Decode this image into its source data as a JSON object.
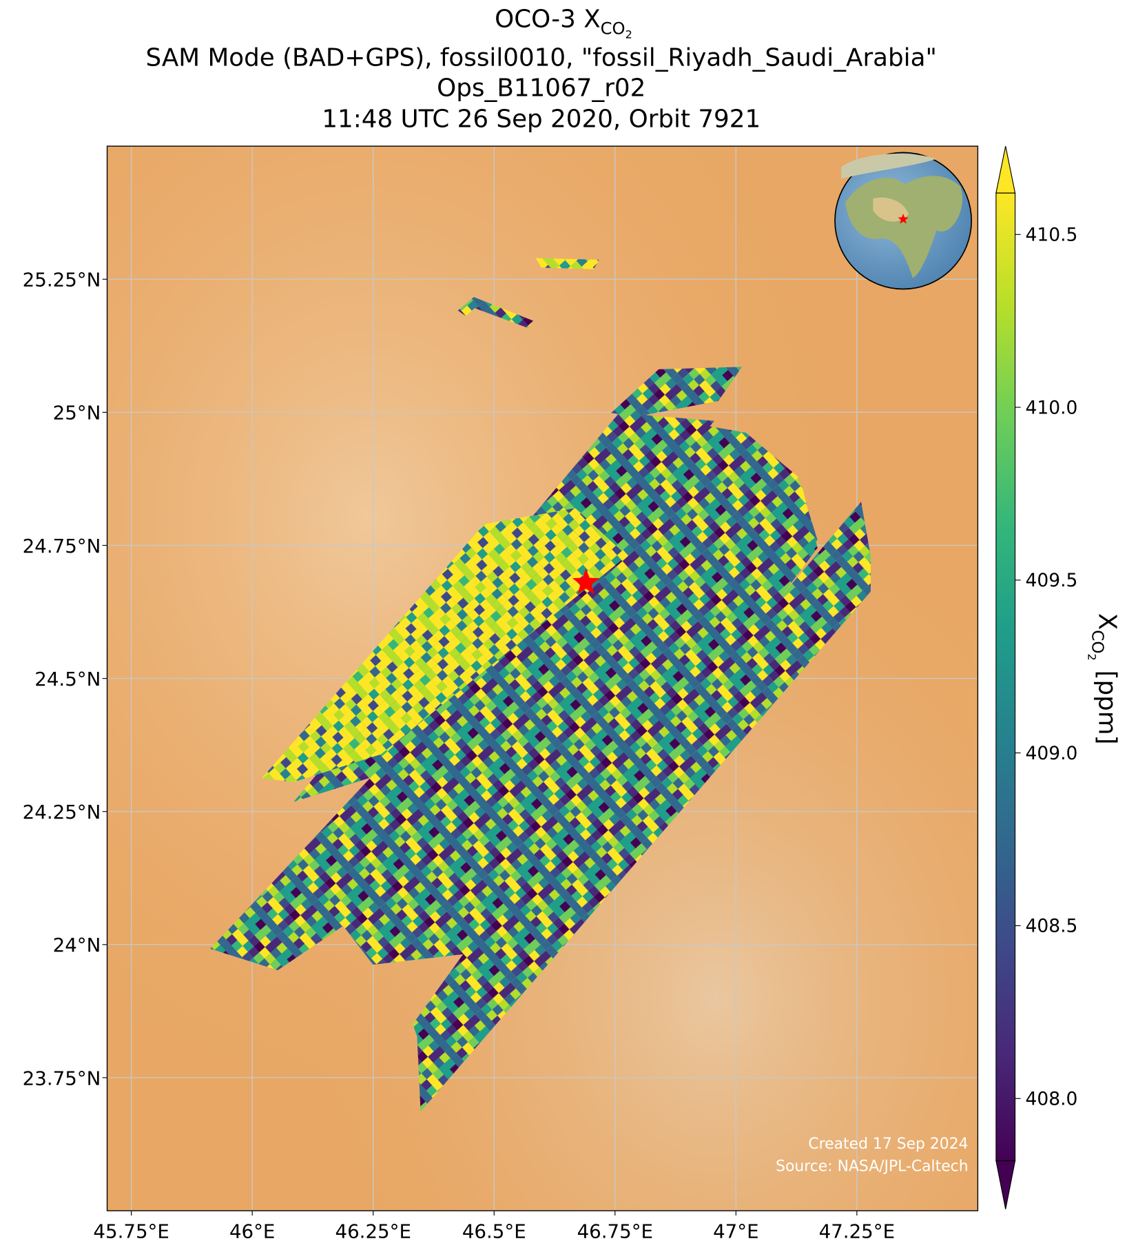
{
  "chart_data": {
    "type": "map",
    "title": "OCO-3 X",
    "title_subscript": "CO",
    "title_subscript2": "2",
    "subtitle_lines": [
      "SAM Mode (BAD+GPS), fossil0010, \"fossil_Riyadh_Saudi_Arabia\"",
      "Ops_B11067_r02",
      "11:48 UTC 26 Sep 2020, Orbit 7921"
    ],
    "xlim": [
      45.7,
      47.5
    ],
    "ylim": [
      23.5,
      25.5
    ],
    "xticks": [
      {
        "value": 45.75,
        "label": "45.75°E"
      },
      {
        "value": 46,
        "label": "46°E"
      },
      {
        "value": 46.25,
        "label": "46.25°E"
      },
      {
        "value": 46.5,
        "label": "46.5°E"
      },
      {
        "value": 46.75,
        "label": "46.75°E"
      },
      {
        "value": 47,
        "label": "47°E"
      },
      {
        "value": 47.25,
        "label": "47.25°E"
      }
    ],
    "yticks": [
      {
        "value": 23.75,
        "label": "23.75°N"
      },
      {
        "value": 24,
        "label": "24°N"
      },
      {
        "value": 24.25,
        "label": "24.25°N"
      },
      {
        "value": 24.5,
        "label": "24.5°N"
      },
      {
        "value": 24.75,
        "label": "24.75°N"
      },
      {
        "value": 25,
        "label": "25°N"
      },
      {
        "value": 25.25,
        "label": "25.25°N"
      }
    ],
    "grid": true,
    "target": {
      "lon": 46.69,
      "lat": 24.68,
      "color": "#ff0000"
    },
    "colorbar": {
      "clim": [
        407.82,
        410.62
      ],
      "ticks": [
        {
          "value": 408,
          "label": "408.0"
        },
        {
          "value": 408.5,
          "label": "408.5"
        },
        {
          "value": 409,
          "label": "409.0"
        },
        {
          "value": 409.5,
          "label": "409.5"
        },
        {
          "value": 410,
          "label": "410.0"
        },
        {
          "value": 410.5,
          "label": "410.5"
        }
      ],
      "label": "X",
      "label_subscript": "CO",
      "label_subscript2": "2",
      "label_unit": "[ppm]",
      "colormap": "viridis"
    },
    "annotations": [
      "Created 17 Sep 2024",
      "Source: NASA/JPL-Caltech"
    ]
  }
}
